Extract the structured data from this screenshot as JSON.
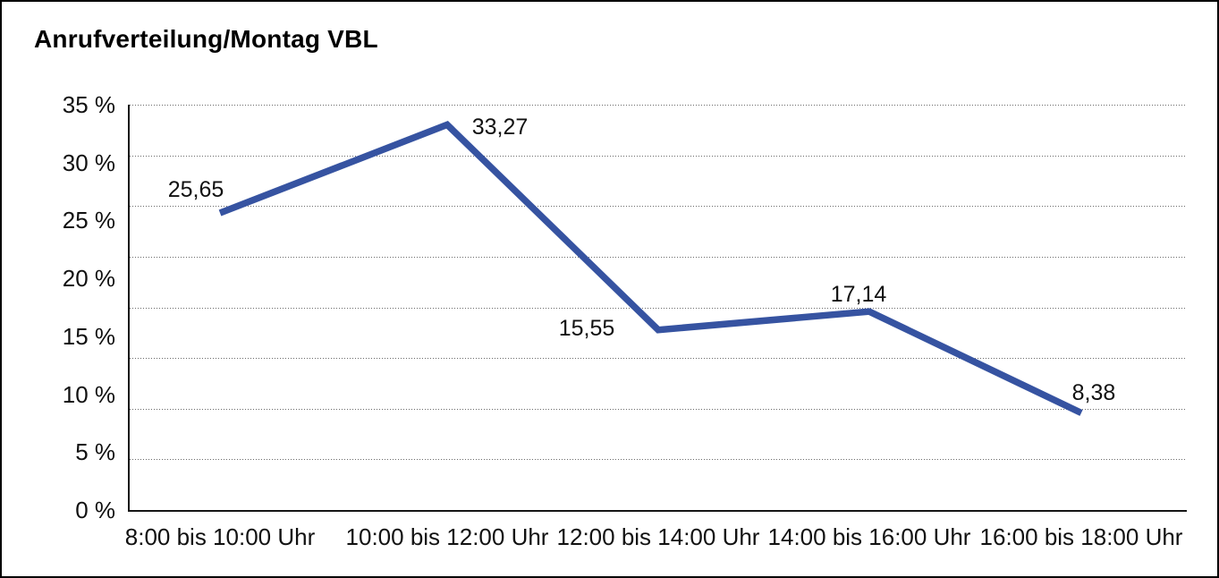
{
  "title": "Anrufverteilung/Montag VBL",
  "chart_data": {
    "type": "line",
    "title": "Anrufverteilung/Montag VBL",
    "categories": [
      "8:00 bis 10:00 Uhr",
      "10:00 bis 12:00 Uhr",
      "12:00 bis 14:00 Uhr",
      "14:00 bis 16:00 Uhr",
      "16:00 bis 18:00 Uhr"
    ],
    "values": [
      25.65,
      33.27,
      15.55,
      17.14,
      8.38
    ],
    "data_labels": [
      "25,65",
      "33,27",
      "15,55",
      "17,14",
      "8,38"
    ],
    "y_tick_labels": [
      "35 %",
      "30 %",
      "25 %",
      "20 %",
      "15 %",
      "10 %",
      "5 %",
      "0 %"
    ],
    "ylim": [
      0,
      35
    ],
    "xlabel": "",
    "ylabel": "",
    "grid": "horizontal-dotted",
    "legend": "none",
    "line_color": "#3653A1",
    "axis_color": "#161616",
    "text_color": "#111111"
  }
}
